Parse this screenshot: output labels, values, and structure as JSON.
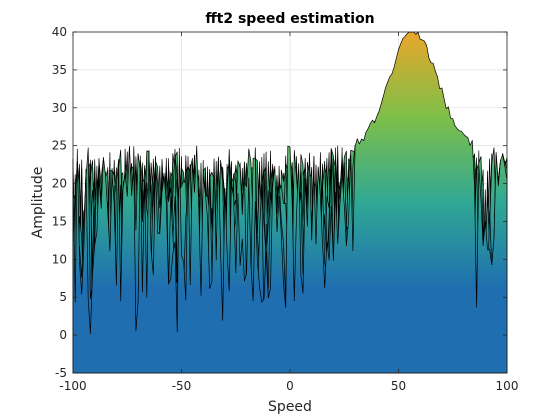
{
  "chart_data": {
    "type": "area",
    "title": "fft2 speed estimation",
    "xlabel": "Speed",
    "ylabel": "Amplitude",
    "xlim": [
      -100,
      100
    ],
    "ylim": [
      -5,
      40
    ],
    "xticks": [
      -100,
      -50,
      0,
      50,
      100
    ],
    "yticks": [
      -5,
      0,
      5,
      10,
      15,
      20,
      25,
      30,
      35,
      40
    ],
    "grid": true,
    "colormap": [
      "#1f6fb0",
      "#2ba3a0",
      "#3fb86a",
      "#9ac23a",
      "#e8a72a"
    ],
    "noise_floor_range": [
      -3,
      25
    ],
    "peak": {
      "center_x": 57,
      "half_width_x": 18,
      "max_amplitude": 39.5,
      "base_amplitude": 24
    },
    "bump": {
      "center_x": 98,
      "max_amplitude": 25
    },
    "slice_count": 14
  }
}
